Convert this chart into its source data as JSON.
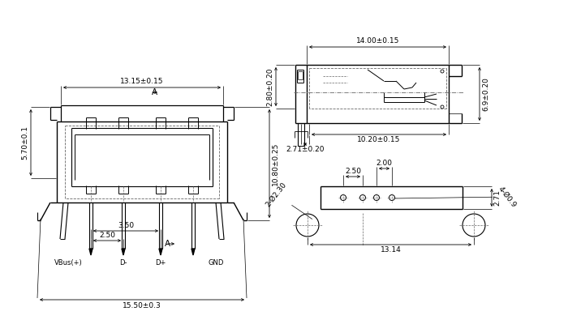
{
  "bg_color": "#ffffff",
  "lc": "#000000",
  "dc": "#666666",
  "dims_left": {
    "width_top": "13.15±0.15",
    "height_right": "10.80±0.25",
    "height_left": "5.70±0.1",
    "width_bottom": "15.50±0.3",
    "pin_pitch1": "2.50",
    "pin_pitch2": "3.50"
  },
  "dims_right_top": {
    "width_top": "14.00±0.15",
    "height_left": "2.80±0.20",
    "height_right": "6.9±0.20",
    "dim_inner1": "10.20±0.15",
    "dim_inner2": "2.71±0.20"
  },
  "dims_right_bot": {
    "dim_h": "13.14",
    "dim_v": "2.71",
    "dim_pitch1": "2.50",
    "dim_pitch2": "2.00",
    "hole_large": "2-Ø2.30",
    "hole_small": "4-Ø0.9"
  },
  "labels": {
    "vbus": "VBus(+)",
    "dm": "D-",
    "dp": "D+",
    "gnd": "GND",
    "sA": "A"
  }
}
